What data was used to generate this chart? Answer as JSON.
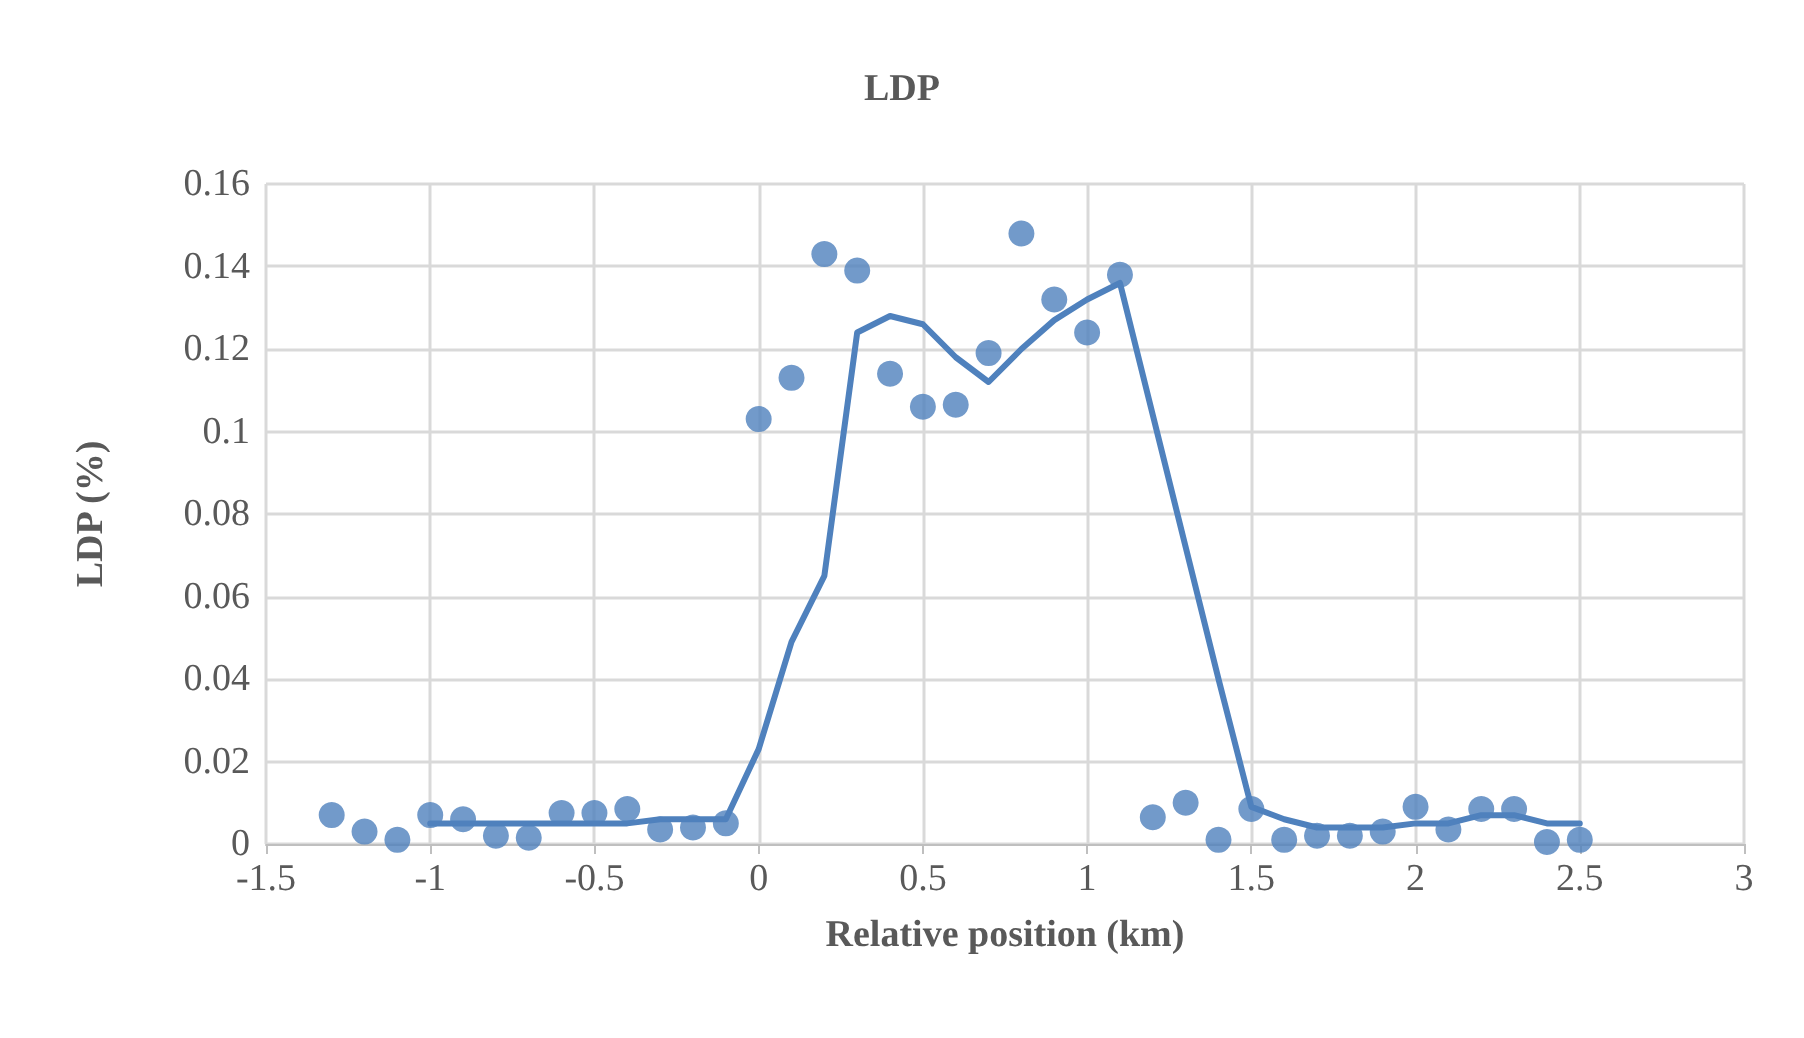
{
  "chart_data": {
    "type": "scatter",
    "title": "LDP",
    "xlabel": "Relative position (km)",
    "ylabel": "LDP (%)",
    "xlim": [
      -1.5,
      3
    ],
    "xticks": [
      -1.5,
      -1,
      -0.5,
      0,
      0.5,
      1,
      1.5,
      2,
      2.5,
      3
    ],
    "ylim": [
      0,
      0.16
    ],
    "yticks": [
      0,
      0.02,
      0.04,
      0.06,
      0.08,
      0.1,
      0.12,
      0.14,
      0.16
    ],
    "grid": true,
    "series": [
      {
        "marker": "circle",
        "color": "#4f81bd",
        "x": [
          -1.3,
          -1.2,
          -1.1,
          -1.0,
          -0.9,
          -0.8,
          -0.7,
          -0.6,
          -0.5,
          -0.4,
          -0.3,
          -0.2,
          -0.1,
          0,
          0.1,
          0.2,
          0.3,
          0.4,
          0.5,
          0.6,
          0.7,
          0.8,
          0.9,
          1.0,
          1.1,
          1.2,
          1.3,
          1.4,
          1.5,
          1.6,
          1.7,
          1.8,
          1.9,
          2.0,
          2.1,
          2.2,
          2.3,
          2.4,
          2.5
        ],
        "values": [
          0.007,
          0.003,
          0.001,
          0.007,
          0.006,
          0.002,
          0.0015,
          0.0075,
          0.0075,
          0.0085,
          0.0035,
          0.004,
          0.005,
          0.103,
          0.113,
          0.143,
          0.139,
          0.114,
          0.106,
          0.1065,
          0.119,
          0.148,
          0.132,
          0.124,
          0.138,
          0.0065,
          0.01,
          0.001,
          0.0085,
          0.001,
          0.002,
          0.002,
          0.003,
          0.009,
          0.0035,
          0.0085,
          0.0085,
          0.0005,
          0.001
        ]
      },
      {
        "type": "line",
        "marker": "none",
        "line_style": "solid",
        "color": "#4f81bd",
        "x": [
          -1.0,
          -0.9,
          -0.8,
          -0.7,
          -0.6,
          -0.5,
          -0.4,
          -0.3,
          -0.2,
          -0.1,
          0,
          0.1,
          0.2,
          0.3,
          0.4,
          0.5,
          0.6,
          0.7,
          0.8,
          0.9,
          1.0,
          1.1,
          1.2,
          1.3,
          1.4,
          1.5,
          1.6,
          1.7,
          1.8,
          1.9,
          2.0,
          2.1,
          2.2,
          2.3,
          2.4,
          2.5
        ],
        "values": [
          0.005,
          0.005,
          0.005,
          0.005,
          0.005,
          0.005,
          0.005,
          0.006,
          0.006,
          0.006,
          0.023,
          0.049,
          0.065,
          0.124,
          0.128,
          0.126,
          0.118,
          0.112,
          0.12,
          0.127,
          0.132,
          0.136,
          0.104,
          0.072,
          0.04,
          0.009,
          0.006,
          0.004,
          0.004,
          0.004,
          0.005,
          0.005,
          0.007,
          0.007,
          0.005,
          0.005
        ]
      }
    ]
  }
}
